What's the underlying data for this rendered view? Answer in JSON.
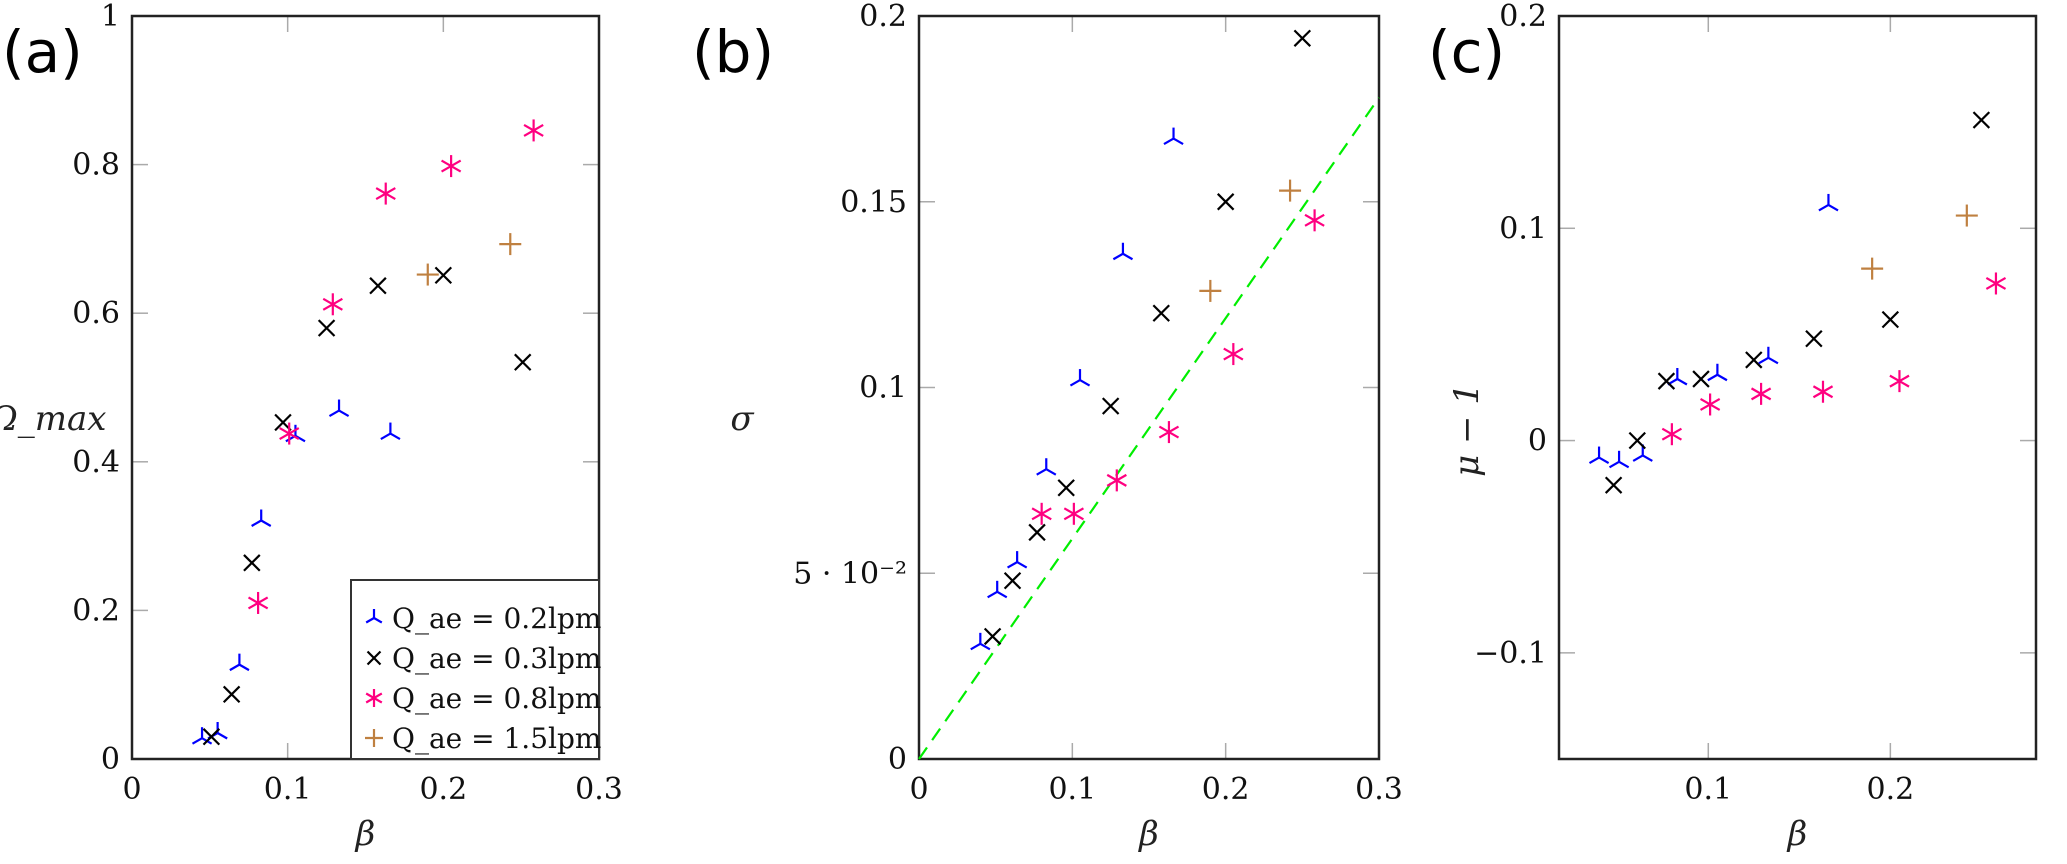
{
  "legend": [
    {
      "label": "Q_ae = 0.2lpm",
      "marker": "tri",
      "color": "#0000ff"
    },
    {
      "label": "Q_ae = 0.3lpm",
      "marker": "x",
      "color": "#000000"
    },
    {
      "label": "Q_ae = 0.8lpm",
      "marker": "star",
      "color": "#ff0080"
    },
    {
      "label": "Q_ae = 1.5lpm",
      "marker": "plus",
      "color": "#bf8040"
    }
  ],
  "chart_data": [
    {
      "type": "scatter",
      "panel_label": "(a)",
      "xlabel": "β",
      "ylabel": "Ω_max",
      "xlim": [
        0,
        0.3
      ],
      "ylim": [
        0,
        1
      ],
      "xticks": [
        0,
        0.1,
        0.2,
        0.3
      ],
      "xtick_labels": [
        "0",
        "0.1",
        "0.2",
        "0.3"
      ],
      "yticks": [
        0,
        0.2,
        0.4,
        0.6,
        0.8,
        1
      ],
      "ytick_labels": [
        "0",
        "0.2",
        "0.4",
        "0.6",
        "0.8",
        "1"
      ],
      "legend_position": "bottom-right",
      "series": [
        {
          "name": "Q_ae = 0.2lpm",
          "x": [
            0.045,
            0.055,
            0.069,
            0.083,
            0.105,
            0.133,
            0.166
          ],
          "y": [
            0.028,
            0.035,
            0.127,
            0.321,
            0.435,
            0.469,
            0.438
          ]
        },
        {
          "name": "Q_ae = 0.3lpm",
          "x": [
            0.051,
            0.064,
            0.077,
            0.097,
            0.125,
            0.158,
            0.2,
            0.251
          ],
          "y": [
            0.03,
            0.087,
            0.264,
            0.453,
            0.58,
            0.637,
            0.651,
            0.534
          ]
        },
        {
          "name": "Q_ae = 0.8lpm",
          "x": [
            0.081,
            0.101,
            0.129,
            0.163,
            0.205,
            0.258
          ],
          "y": [
            0.21,
            0.438,
            0.612,
            0.761,
            0.798,
            0.846
          ]
        },
        {
          "name": "Q_ae = 1.5lpm",
          "x": [
            0.19,
            0.243
          ],
          "y": [
            0.652,
            0.693
          ]
        }
      ]
    },
    {
      "type": "scatter",
      "panel_label": "(b)",
      "xlabel": "β",
      "ylabel": "σ",
      "xlim": [
        0,
        0.3
      ],
      "ylim": [
        0,
        0.2
      ],
      "xticks": [
        0,
        0.1,
        0.2,
        0.3
      ],
      "xtick_labels": [
        "0",
        "0.1",
        "0.2",
        "0.3"
      ],
      "yticks": [
        0,
        0.05,
        0.1,
        0.15,
        0.2
      ],
      "ytick_labels": [
        "0",
        "5 · 10⁻²",
        "0.1",
        "0.15",
        "0.2"
      ],
      "reference_line": {
        "style": "dashed",
        "color": "#00ee00",
        "x": [
          0,
          0.3
        ],
        "y": [
          0,
          0.178
        ]
      },
      "series": [
        {
          "name": "Q_ae = 0.2lpm",
          "x": [
            0.04,
            0.051,
            0.064,
            0.083,
            0.105,
            0.133,
            0.166
          ],
          "y": [
            0.031,
            0.045,
            0.053,
            0.078,
            0.102,
            0.136,
            0.167
          ]
        },
        {
          "name": "Q_ae = 0.3lpm",
          "x": [
            0.048,
            0.061,
            0.077,
            0.096,
            0.125,
            0.158,
            0.2,
            0.25
          ],
          "y": [
            0.033,
            0.048,
            0.061,
            0.073,
            0.095,
            0.12,
            0.15,
            0.194
          ]
        },
        {
          "name": "Q_ae = 0.8lpm",
          "x": [
            0.08,
            0.101,
            0.129,
            0.163,
            0.205,
            0.258
          ],
          "y": [
            0.066,
            0.066,
            0.075,
            0.088,
            0.109,
            0.145
          ]
        },
        {
          "name": "Q_ae = 1.5lpm",
          "x": [
            0.19,
            0.242
          ],
          "y": [
            0.126,
            0.153
          ]
        }
      ]
    },
    {
      "type": "scatter",
      "panel_label": "(c)",
      "xlabel": "β",
      "ylabel": "μ − 1",
      "xlim": [
        0.018,
        0.28
      ],
      "ylim": [
        -0.15,
        0.2
      ],
      "xticks": [
        0.1,
        0.2
      ],
      "xtick_labels": [
        "0.1",
        "0.2"
      ],
      "yticks": [
        -0.1,
        0,
        0.1,
        0.2
      ],
      "ytick_labels": [
        "−0.1",
        "0",
        "0.1",
        "0.2"
      ],
      "series": [
        {
          "name": "Q_ae = 0.2lpm",
          "x": [
            0.04,
            0.051,
            0.064,
            0.083,
            0.105,
            0.133,
            0.166
          ],
          "y": [
            -0.008,
            -0.01,
            -0.007,
            0.029,
            0.031,
            0.039,
            0.111
          ]
        },
        {
          "name": "Q_ae = 0.3lpm",
          "x": [
            0.048,
            0.061,
            0.077,
            0.096,
            0.125,
            0.158,
            0.2,
            0.25
          ],
          "y": [
            -0.021,
            0.0,
            0.028,
            0.029,
            0.038,
            0.048,
            0.057,
            0.151
          ]
        },
        {
          "name": "Q_ae = 0.8lpm",
          "x": [
            0.08,
            0.101,
            0.129,
            0.163,
            0.205,
            0.258
          ],
          "y": [
            0.003,
            0.017,
            0.022,
            0.023,
            0.028,
            0.074
          ]
        },
        {
          "name": "Q_ae = 1.5lpm",
          "x": [
            0.19,
            0.242
          ],
          "y": [
            0.081,
            0.106
          ]
        }
      ]
    }
  ]
}
